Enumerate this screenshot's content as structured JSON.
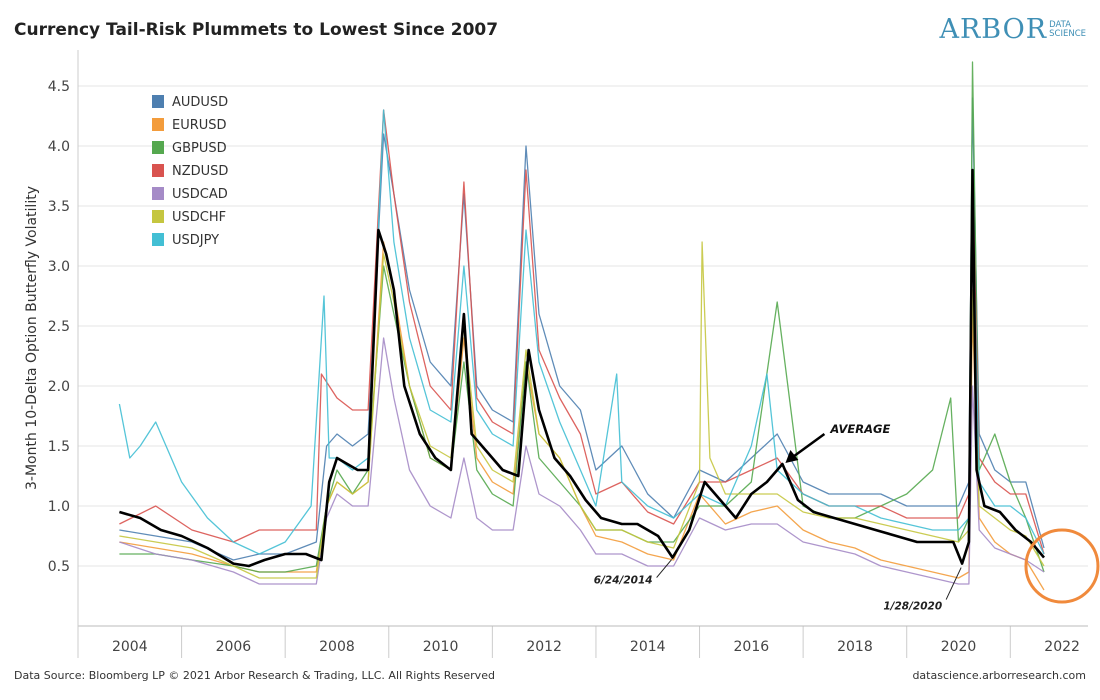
{
  "header": {
    "title": "Currency Tail-Risk Plummets to Lowest Since 2007",
    "logo_main": "ARBOR",
    "logo_sub_1": "DATA",
    "logo_sub_2": "SCIENCE"
  },
  "footer": {
    "source": "Data Source: Bloomberg LP © 2021 Arbor Research & Trading, LLC. All Rights Reserved",
    "site": "datascience.arborresearch.com"
  },
  "colors": {
    "AUDUSD": "#4e7fb0",
    "EURUSD": "#f39c3c",
    "GBPUSD": "#55a84f",
    "NZDUSD": "#d9534f",
    "USDCAD": "#a58bc7",
    "USDCHF": "#c5c640",
    "USDJPY": "#43bfd4",
    "average": "#000000",
    "highlight_circle": "#f08a3c"
  },
  "chart_data": {
    "type": "line",
    "title": "Currency Tail-Risk Plummets to Lowest Since 2007",
    "ylabel": "3-Month 10-Delta Option Butterfly Volatility",
    "xlabel": "",
    "xlim": [
      2003.0,
      2022.5
    ],
    "ylim": [
      0.0,
      4.8
    ],
    "xticks": [
      "2004",
      "2006",
      "2008",
      "2010",
      "2012",
      "2014",
      "2016",
      "2018",
      "2020",
      "2022"
    ],
    "yticks": [
      "0.5",
      "1.0",
      "1.5",
      "2.0",
      "2.5",
      "3.0",
      "3.5",
      "4.0",
      "4.5"
    ],
    "grid": true,
    "legend_placement": "top-left",
    "series": [
      {
        "name": "AUDUSD",
        "x": [
          2003.8,
          2004.5,
          2005.2,
          2006.0,
          2006.5,
          2007.0,
          2007.6,
          2007.8,
          2008.0,
          2008.3,
          2008.6,
          2008.9,
          2009.1,
          2009.4,
          2009.8,
          2010.2,
          2010.45,
          2010.7,
          2011.0,
          2011.4,
          2011.65,
          2011.9,
          2012.3,
          2012.7,
          2013.0,
          2013.5,
          2014.0,
          2014.5,
          2015.0,
          2015.5,
          2016.0,
          2016.5,
          2017.0,
          2017.5,
          2018.0,
          2018.5,
          2019.0,
          2019.5,
          2020.0,
          2020.2,
          2020.27,
          2020.4,
          2020.7,
          2021.0,
          2021.3,
          2021.65
        ],
        "y": [
          0.8,
          0.75,
          0.7,
          0.55,
          0.6,
          0.6,
          0.7,
          1.5,
          1.6,
          1.5,
          1.6,
          4.1,
          3.6,
          2.8,
          2.2,
          2.0,
          3.6,
          2.0,
          1.8,
          1.7,
          4.0,
          2.6,
          2.0,
          1.8,
          1.3,
          1.5,
          1.1,
          0.9,
          1.3,
          1.2,
          1.4,
          1.6,
          1.2,
          1.1,
          1.1,
          1.1,
          1.0,
          1.0,
          1.0,
          1.2,
          4.4,
          1.6,
          1.3,
          1.2,
          1.2,
          0.65
        ]
      },
      {
        "name": "EURUSD",
        "x": [
          2003.8,
          2004.5,
          2005.2,
          2006.0,
          2006.5,
          2007.0,
          2007.6,
          2007.8,
          2008.0,
          2008.3,
          2008.6,
          2008.9,
          2009.1,
          2009.4,
          2009.8,
          2010.2,
          2010.45,
          2010.7,
          2011.0,
          2011.4,
          2011.65,
          2011.9,
          2012.3,
          2012.7,
          2013.0,
          2013.5,
          2014.0,
          2014.5,
          2015.0,
          2015.5,
          2016.0,
          2016.5,
          2017.0,
          2017.5,
          2018.0,
          2018.5,
          2019.0,
          2019.5,
          2020.0,
          2020.2,
          2020.27,
          2020.4,
          2020.7,
          2021.0,
          2021.3,
          2021.65
        ],
        "y": [
          0.7,
          0.65,
          0.6,
          0.5,
          0.45,
          0.45,
          0.45,
          1.0,
          1.2,
          1.1,
          1.2,
          3.2,
          2.8,
          2.0,
          1.4,
          1.3,
          2.4,
          1.4,
          1.2,
          1.1,
          2.2,
          1.6,
          1.4,
          1.0,
          0.75,
          0.7,
          0.6,
          0.55,
          1.1,
          0.85,
          0.95,
          1.0,
          0.8,
          0.7,
          0.65,
          0.55,
          0.5,
          0.45,
          0.4,
          0.45,
          2.6,
          0.9,
          0.7,
          0.6,
          0.55,
          0.3
        ]
      },
      {
        "name": "GBPUSD",
        "x": [
          2003.8,
          2004.5,
          2005.2,
          2006.0,
          2006.5,
          2007.0,
          2007.6,
          2007.8,
          2008.0,
          2008.3,
          2008.6,
          2008.9,
          2009.1,
          2009.4,
          2009.8,
          2010.2,
          2010.45,
          2010.7,
          2011.0,
          2011.4,
          2011.65,
          2011.9,
          2012.3,
          2012.7,
          2013.0,
          2013.5,
          2014.0,
          2014.5,
          2015.0,
          2015.5,
          2016.0,
          2016.5,
          2017.0,
          2017.5,
          2018.0,
          2018.5,
          2019.0,
          2019.5,
          2019.85,
          2020.0,
          2020.2,
          2020.27,
          2020.4,
          2020.7,
          2021.0,
          2021.3,
          2021.65
        ],
        "y": [
          0.6,
          0.6,
          0.55,
          0.5,
          0.45,
          0.45,
          0.5,
          1.0,
          1.3,
          1.1,
          1.3,
          3.0,
          2.6,
          2.0,
          1.4,
          1.3,
          2.2,
          1.3,
          1.1,
          1.0,
          2.2,
          1.4,
          1.2,
          1.0,
          0.8,
          0.8,
          0.7,
          0.7,
          1.0,
          1.0,
          1.2,
          2.7,
          1.0,
          0.9,
          0.9,
          1.0,
          1.1,
          1.3,
          1.9,
          0.7,
          0.9,
          4.7,
          1.3,
          1.6,
          1.2,
          0.9,
          0.45
        ]
      },
      {
        "name": "NZDUSD",
        "x": [
          2003.8,
          2004.5,
          2005.2,
          2006.0,
          2006.5,
          2007.0,
          2007.6,
          2007.7,
          2008.0,
          2008.3,
          2008.6,
          2008.9,
          2009.1,
          2009.4,
          2009.8,
          2010.2,
          2010.45,
          2010.7,
          2011.0,
          2011.4,
          2011.65,
          2011.9,
          2012.3,
          2012.7,
          2013.0,
          2013.5,
          2014.0,
          2014.5,
          2015.0,
          2015.5,
          2016.0,
          2016.5,
          2017.0,
          2017.5,
          2018.0,
          2018.5,
          2019.0,
          2019.5,
          2020.0,
          2020.2,
          2020.27,
          2020.4,
          2020.7,
          2021.0,
          2021.3,
          2021.65
        ],
        "y": [
          0.85,
          1.0,
          0.8,
          0.7,
          0.8,
          0.8,
          0.8,
          2.1,
          1.9,
          1.8,
          1.8,
          4.3,
          3.6,
          2.7,
          2.0,
          1.8,
          3.7,
          1.9,
          1.7,
          1.6,
          3.8,
          2.3,
          1.9,
          1.6,
          1.1,
          1.2,
          0.95,
          0.85,
          1.2,
          1.2,
          1.3,
          1.4,
          1.1,
          1.0,
          1.0,
          1.0,
          0.9,
          0.9,
          0.9,
          1.1,
          3.8,
          1.4,
          1.2,
          1.1,
          1.1,
          0.6
        ]
      },
      {
        "name": "USDCAD",
        "x": [
          2003.8,
          2004.5,
          2005.2,
          2006.0,
          2006.5,
          2007.0,
          2007.6,
          2007.8,
          2008.0,
          2008.3,
          2008.6,
          2008.9,
          2009.1,
          2009.4,
          2009.8,
          2010.2,
          2010.45,
          2010.7,
          2011.0,
          2011.4,
          2011.65,
          2011.9,
          2012.3,
          2012.7,
          2013.0,
          2013.5,
          2014.0,
          2014.5,
          2015.0,
          2015.5,
          2016.0,
          2016.5,
          2017.0,
          2017.5,
          2018.0,
          2018.5,
          2019.0,
          2019.5,
          2020.0,
          2020.2,
          2020.27,
          2020.4,
          2020.7,
          2021.0,
          2021.3,
          2021.65
        ],
        "y": [
          0.7,
          0.6,
          0.55,
          0.45,
          0.35,
          0.35,
          0.35,
          0.9,
          1.1,
          1.0,
          1.0,
          2.4,
          1.9,
          1.3,
          1.0,
          0.9,
          1.4,
          0.9,
          0.8,
          0.8,
          1.5,
          1.1,
          1.0,
          0.8,
          0.6,
          0.6,
          0.5,
          0.5,
          0.9,
          0.8,
          0.85,
          0.85,
          0.7,
          0.65,
          0.6,
          0.5,
          0.45,
          0.4,
          0.35,
          0.35,
          2.0,
          0.8,
          0.65,
          0.6,
          0.55,
          0.45
        ]
      },
      {
        "name": "USDCHF",
        "x": [
          2003.8,
          2004.5,
          2005.2,
          2006.0,
          2006.5,
          2007.0,
          2007.6,
          2007.8,
          2008.0,
          2008.3,
          2008.6,
          2008.9,
          2009.1,
          2009.4,
          2009.8,
          2010.2,
          2010.45,
          2010.7,
          2011.0,
          2011.4,
          2011.65,
          2011.9,
          2012.3,
          2012.7,
          2013.0,
          2013.5,
          2014.0,
          2014.5,
          2015.0,
          2015.05,
          2015.2,
          2015.5,
          2016.0,
          2016.5,
          2017.0,
          2017.5,
          2018.0,
          2018.5,
          2019.0,
          2019.5,
          2020.0,
          2020.2,
          2020.27,
          2020.4,
          2020.7,
          2021.0,
          2021.3,
          2021.65
        ],
        "y": [
          0.75,
          0.7,
          0.65,
          0.5,
          0.4,
          0.4,
          0.4,
          1.0,
          1.2,
          1.1,
          1.2,
          3.1,
          2.7,
          2.0,
          1.5,
          1.4,
          2.5,
          1.5,
          1.3,
          1.2,
          2.3,
          1.6,
          1.4,
          1.0,
          0.8,
          0.8,
          0.7,
          0.65,
          1.2,
          3.2,
          1.4,
          1.1,
          1.1,
          1.1,
          0.95,
          0.9,
          0.9,
          0.85,
          0.8,
          0.75,
          0.7,
          0.8,
          2.8,
          1.0,
          0.9,
          0.8,
          0.75,
          0.5
        ]
      },
      {
        "name": "USDJPY",
        "x": [
          2003.8,
          2004.0,
          2004.2,
          2004.5,
          2005.0,
          2005.5,
          2006.0,
          2006.5,
          2007.0,
          2007.5,
          2007.75,
          2007.85,
          2008.0,
          2008.3,
          2008.6,
          2008.9,
          2009.1,
          2009.4,
          2009.8,
          2010.2,
          2010.45,
          2010.7,
          2011.0,
          2011.4,
          2011.65,
          2011.9,
          2012.3,
          2012.7,
          2013.0,
          2013.4,
          2013.5,
          2014.0,
          2014.5,
          2015.0,
          2015.5,
          2016.0,
          2016.3,
          2016.5,
          2017.0,
          2017.5,
          2018.0,
          2018.5,
          2019.0,
          2019.5,
          2020.0,
          2020.2,
          2020.27,
          2020.4,
          2020.7,
          2021.0,
          2021.3,
          2021.65
        ],
        "y": [
          1.85,
          1.4,
          1.5,
          1.7,
          1.2,
          0.9,
          0.7,
          0.6,
          0.7,
          1.0,
          2.75,
          1.4,
          1.4,
          1.3,
          1.4,
          4.3,
          3.2,
          2.4,
          1.8,
          1.7,
          3.0,
          1.8,
          1.6,
          1.5,
          3.3,
          2.2,
          1.7,
          1.3,
          1.0,
          2.1,
          1.2,
          1.0,
          0.9,
          1.1,
          1.0,
          1.5,
          2.1,
          1.3,
          1.1,
          1.0,
          1.0,
          0.9,
          0.85,
          0.8,
          0.8,
          0.9,
          3.6,
          1.2,
          1.0,
          1.0,
          0.9,
          0.6
        ]
      },
      {
        "name": "AVERAGE",
        "x": [
          2003.8,
          2004.2,
          2004.6,
          2005.0,
          2005.5,
          2006.0,
          2006.3,
          2006.6,
          2007.0,
          2007.4,
          2007.7,
          2007.85,
          2008.0,
          2008.2,
          2008.4,
          2008.6,
          2008.8,
          2008.95,
          2009.1,
          2009.3,
          2009.6,
          2009.9,
          2010.2,
          2010.45,
          2010.6,
          2010.9,
          2011.2,
          2011.5,
          2011.7,
          2011.9,
          2012.2,
          2012.5,
          2012.8,
          2013.1,
          2013.5,
          2013.8,
          2014.2,
          2014.48,
          2014.8,
          2015.1,
          2015.4,
          2015.7,
          2016.0,
          2016.3,
          2016.6,
          2016.9,
          2017.2,
          2017.6,
          2018.0,
          2018.4,
          2018.8,
          2019.2,
          2019.6,
          2019.9,
          2020.07,
          2020.2,
          2020.27,
          2020.35,
          2020.5,
          2020.8,
          2021.1,
          2021.4,
          2021.65
        ],
        "y": [
          0.95,
          0.9,
          0.8,
          0.75,
          0.65,
          0.52,
          0.5,
          0.55,
          0.6,
          0.6,
          0.55,
          1.2,
          1.4,
          1.35,
          1.3,
          1.3,
          3.3,
          3.1,
          2.8,
          2.0,
          1.6,
          1.4,
          1.3,
          2.6,
          1.6,
          1.45,
          1.3,
          1.25,
          2.3,
          1.8,
          1.4,
          1.25,
          1.05,
          0.9,
          0.85,
          0.85,
          0.75,
          0.57,
          0.8,
          1.2,
          1.05,
          0.9,
          1.1,
          1.2,
          1.35,
          1.05,
          0.95,
          0.9,
          0.85,
          0.8,
          0.75,
          0.7,
          0.7,
          0.7,
          0.52,
          0.7,
          3.8,
          1.3,
          1.0,
          0.95,
          0.8,
          0.7,
          0.57
        ]
      }
    ],
    "annotations": [
      {
        "text": "AVERAGE",
        "x": 2016.6,
        "y": 1.35
      },
      {
        "text": "6/24/2014",
        "x": 2014.48,
        "y": 0.57
      },
      {
        "text": "1/28/2020",
        "x": 2020.07,
        "y": 0.52
      }
    ],
    "highlight": {
      "x": 2021.65,
      "y": 0.5,
      "shape": "circle"
    }
  }
}
